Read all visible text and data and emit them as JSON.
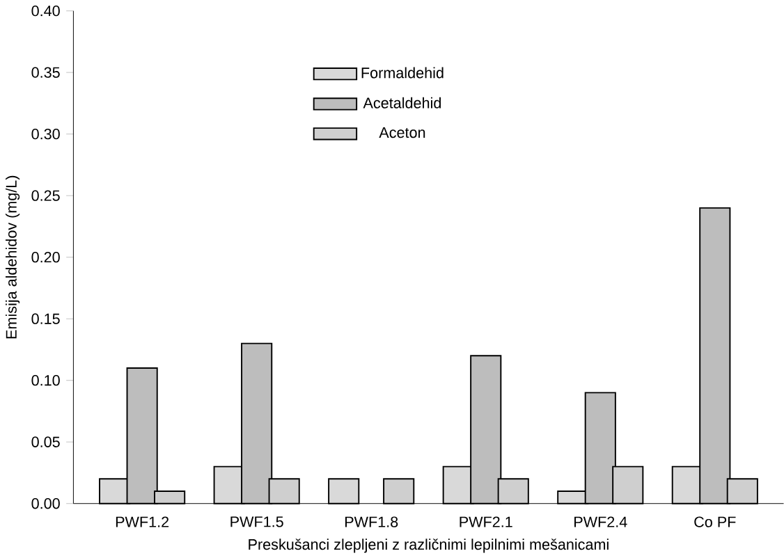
{
  "chart_data": {
    "type": "bar",
    "xlabel": "Preskušanci zlepljeni z različnimi lepilnimi mešanicami",
    "ylabel": "Emisija aldehidov (mg/L)",
    "categories": [
      "PWF1.2",
      "PWF1.5",
      "PWF1.8",
      "PWF2.1",
      "PWF2.4",
      "Co PF"
    ],
    "series": [
      {
        "name": "Formaldehid",
        "color": "#d9d9d9",
        "values": [
          0.02,
          0.03,
          0.02,
          0.03,
          0.01,
          0.03
        ]
      },
      {
        "name": "Acetaldehid",
        "color": "#bdbdbd",
        "values": [
          0.11,
          0.13,
          null,
          0.12,
          0.09,
          0.24
        ]
      },
      {
        "name": "Aceton",
        "color": "#cfcfcf",
        "values": [
          0.01,
          0.02,
          0.02,
          0.02,
          0.03,
          0.02
        ]
      }
    ],
    "ylim": [
      0,
      0.4
    ],
    "yticks": [
      {
        "value": 0,
        "label": "0.00"
      },
      {
        "value": 0.05,
        "label": "0.05"
      },
      {
        "value": 0.1,
        "label": "0.10"
      },
      {
        "value": 0.15,
        "label": "0.15"
      },
      {
        "value": 0.2,
        "label": "0.20"
      },
      {
        "value": 0.25,
        "label": "0.25"
      },
      {
        "value": 0.3,
        "label": "0.30"
      },
      {
        "value": 0.35,
        "label": "0.35"
      },
      {
        "value": 0.4,
        "label": "0.40"
      }
    ],
    "grid": false,
    "legend": "top"
  }
}
